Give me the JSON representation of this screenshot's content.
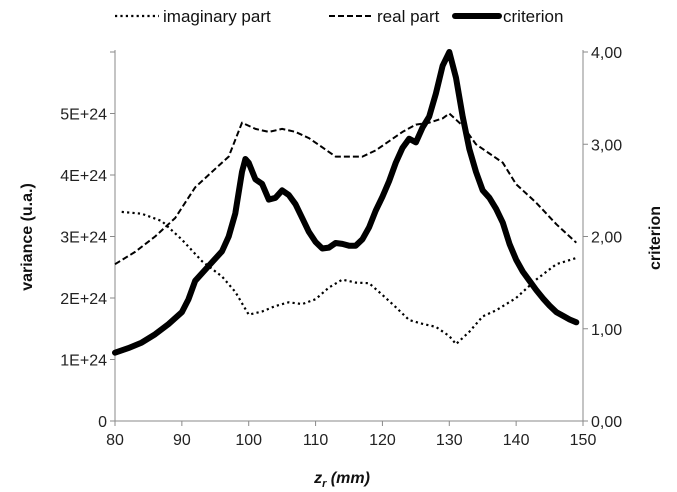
{
  "chart_data": {
    "type": "line",
    "xlabel": {
      "main": "z",
      "sub": "r",
      "rest": " (mm)"
    },
    "ylabel_left": "variance (u.a.)",
    "ylabel_right": "criterion",
    "xlim": [
      80,
      150
    ],
    "ylim_left": [
      0,
      6e+24
    ],
    "ylim_right": [
      0,
      4
    ],
    "x_ticks": [
      "80",
      "90",
      "100",
      "110",
      "120",
      "130",
      "140",
      "150"
    ],
    "y_left_ticks": [
      "0",
      "1E+24",
      "2E+24",
      "3E+24",
      "4E+24",
      "5E+24"
    ],
    "y_right_ticks": [
      "0,00",
      "1,00",
      "2,00",
      "3,00",
      "4,00"
    ],
    "legend_position": "top",
    "grid": false,
    "series": [
      {
        "name": "imaginary part",
        "axis": "left",
        "style": "dotted",
        "color": "#000000",
        "points": [
          [
            81,
            3.4e+24
          ],
          [
            84,
            3.37e+24
          ],
          [
            87,
            3.25e+24
          ],
          [
            90,
            2.95e+24
          ],
          [
            93,
            2.6e+24
          ],
          [
            96,
            2.35e+24
          ],
          [
            98,
            2.1e+24
          ],
          [
            100,
            1.73e+24
          ],
          [
            102,
            1.78e+24
          ],
          [
            104,
            1.87e+24
          ],
          [
            106,
            1.93e+24
          ],
          [
            108,
            1.9e+24
          ],
          [
            110,
            1.98e+24
          ],
          [
            112,
            2.17e+24
          ],
          [
            114,
            2.3e+24
          ],
          [
            116,
            2.25e+24
          ],
          [
            118,
            2.24e+24
          ],
          [
            120,
            2.05e+24
          ],
          [
            122,
            1.85e+24
          ],
          [
            124,
            1.64e+24
          ],
          [
            126,
            1.58e+24
          ],
          [
            128,
            1.53e+24
          ],
          [
            130,
            1.38e+24
          ],
          [
            131,
            1.25e+24
          ],
          [
            133,
            1.45e+24
          ],
          [
            135,
            1.7e+24
          ],
          [
            137,
            1.8e+24
          ],
          [
            140,
            2e+24
          ],
          [
            143,
            2.3e+24
          ],
          [
            146,
            2.55e+24
          ],
          [
            149,
            2.65e+24
          ]
        ]
      },
      {
        "name": "real part",
        "axis": "left",
        "style": "dashed",
        "color": "#000000",
        "points": [
          [
            80,
            2.55e+24
          ],
          [
            83,
            2.75e+24
          ],
          [
            86,
            3e+24
          ],
          [
            89,
            3.3e+24
          ],
          [
            92,
            3.8e+24
          ],
          [
            95,
            4.1e+24
          ],
          [
            97,
            4.3e+24
          ],
          [
            99,
            4.85e+24
          ],
          [
            101,
            4.75e+24
          ],
          [
            103,
            4.7e+24
          ],
          [
            105,
            4.75e+24
          ],
          [
            107,
            4.7e+24
          ],
          [
            109,
            4.6e+24
          ],
          [
            111,
            4.45e+24
          ],
          [
            113,
            4.3e+24
          ],
          [
            115,
            4.3e+24
          ],
          [
            117,
            4.3e+24
          ],
          [
            119,
            4.4e+24
          ],
          [
            121,
            4.55e+24
          ],
          [
            123,
            4.7e+24
          ],
          [
            125,
            4.82e+24
          ],
          [
            127,
            4.85e+24
          ],
          [
            129,
            4.92e+24
          ],
          [
            130,
            5e+24
          ],
          [
            132,
            4.8e+24
          ],
          [
            134,
            4.5e+24
          ],
          [
            136,
            4.35e+24
          ],
          [
            138,
            4.2e+24
          ],
          [
            140,
            3.85e+24
          ],
          [
            143,
            3.55e+24
          ],
          [
            146,
            3.2e+24
          ],
          [
            149,
            2.9e+24
          ]
        ]
      },
      {
        "name": "criterion",
        "axis": "right",
        "style": "solid",
        "color": "#000000",
        "points": [
          [
            80,
            0.74
          ],
          [
            82,
            0.79
          ],
          [
            84,
            0.85
          ],
          [
            86,
            0.94
          ],
          [
            88,
            1.05
          ],
          [
            90,
            1.18
          ],
          [
            91,
            1.32
          ],
          [
            92,
            1.52
          ],
          [
            94,
            1.68
          ],
          [
            96,
            1.84
          ],
          [
            97,
            2.0
          ],
          [
            98,
            2.25
          ],
          [
            99,
            2.7
          ],
          [
            99.5,
            2.84
          ],
          [
            100,
            2.8
          ],
          [
            101,
            2.62
          ],
          [
            102,
            2.57
          ],
          [
            103,
            2.4
          ],
          [
            104,
            2.42
          ],
          [
            105,
            2.5
          ],
          [
            106,
            2.45
          ],
          [
            107,
            2.35
          ],
          [
            108,
            2.2
          ],
          [
            109,
            2.05
          ],
          [
            110,
            1.94
          ],
          [
            111,
            1.87
          ],
          [
            112,
            1.88
          ],
          [
            113,
            1.93
          ],
          [
            114,
            1.92
          ],
          [
            115,
            1.9
          ],
          [
            116,
            1.9
          ],
          [
            117,
            1.97
          ],
          [
            118,
            2.1
          ],
          [
            119,
            2.28
          ],
          [
            120,
            2.43
          ],
          [
            121,
            2.6
          ],
          [
            122,
            2.8
          ],
          [
            123,
            2.96
          ],
          [
            124,
            3.06
          ],
          [
            125,
            3.02
          ],
          [
            126,
            3.18
          ],
          [
            127,
            3.3
          ],
          [
            128,
            3.55
          ],
          [
            129,
            3.85
          ],
          [
            130,
            4.0
          ],
          [
            131,
            3.72
          ],
          [
            132,
            3.3
          ],
          [
            133,
            2.95
          ],
          [
            134,
            2.7
          ],
          [
            135,
            2.5
          ],
          [
            136,
            2.42
          ],
          [
            137,
            2.3
          ],
          [
            138,
            2.15
          ],
          [
            139,
            1.92
          ],
          [
            140,
            1.75
          ],
          [
            141,
            1.62
          ],
          [
            142,
            1.52
          ],
          [
            143,
            1.42
          ],
          [
            144,
            1.33
          ],
          [
            145,
            1.25
          ],
          [
            146,
            1.18
          ],
          [
            147,
            1.14
          ],
          [
            148,
            1.1
          ],
          [
            149,
            1.07
          ]
        ]
      }
    ]
  }
}
